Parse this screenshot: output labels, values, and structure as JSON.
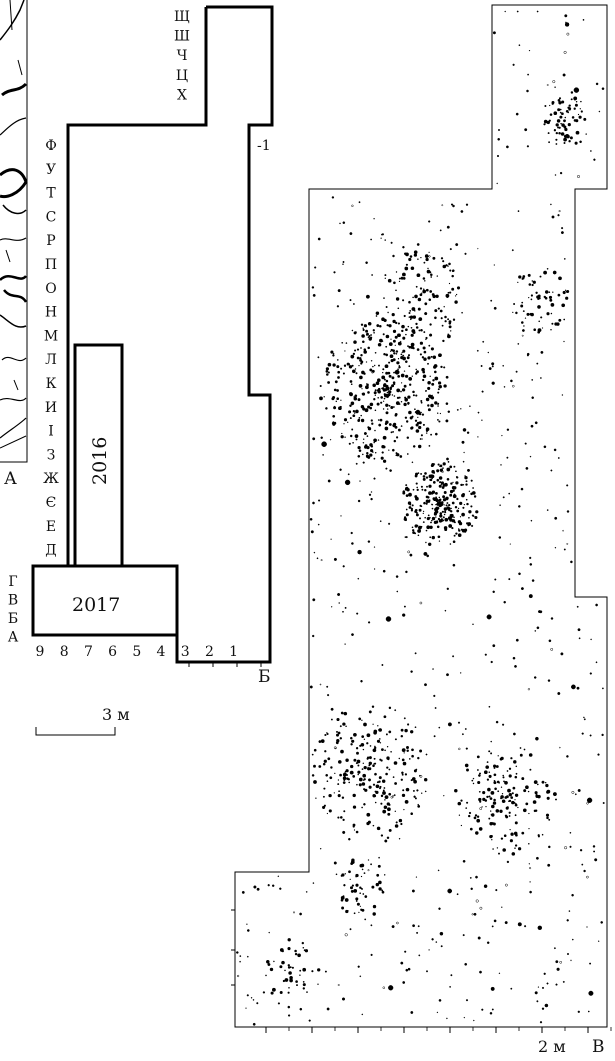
{
  "panels": {
    "a": {
      "letter": "А"
    },
    "b": {
      "letter": "Б",
      "row_labels": [
        "Щ",
        "Ш",
        "Ч",
        "Ц",
        "Х",
        "Ф",
        "У",
        "Т",
        "С",
        "Р",
        "П",
        "О",
        "Н",
        "М",
        "Л",
        "К",
        "И",
        "І",
        "З",
        "Ж",
        "Є",
        "Е",
        "Д",
        "Г",
        "В",
        "Б",
        "А"
      ],
      "col_labels": [
        "9",
        "8",
        "7",
        "6",
        "5",
        "4",
        "3",
        "2",
        "1"
      ],
      "side_label": "-1",
      "year_2016": "2016",
      "year_2017": "2017",
      "scale_label": "3 м"
    },
    "c": {
      "letter": "В",
      "scale_label": "2 м"
    }
  }
}
